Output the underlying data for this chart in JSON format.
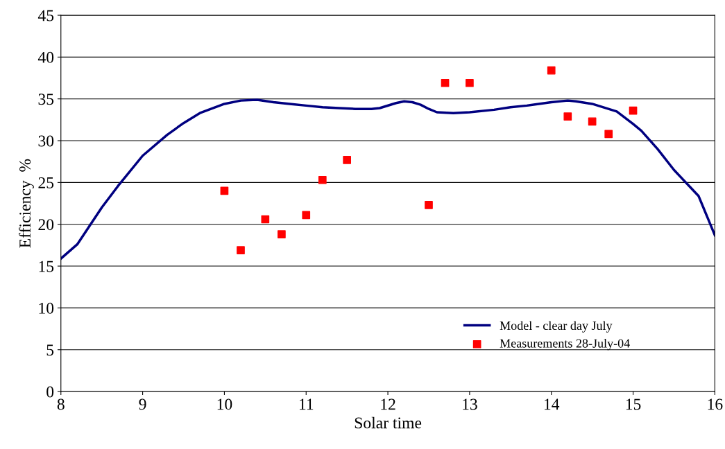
{
  "chart_data": {
    "type": "line",
    "xlabel": "Solar time",
    "ylabel": "Efficiency  %",
    "xlim": [
      8,
      16
    ],
    "xticks": [
      8,
      9,
      10,
      11,
      12,
      13,
      14,
      15,
      16
    ],
    "ylim": [
      0,
      45
    ],
    "yticks": [
      0,
      5,
      10,
      15,
      20,
      25,
      30,
      35,
      40,
      45
    ],
    "grid": "y",
    "legend": "bottom right",
    "series": [
      {
        "name": "Model - clear day July",
        "color": "#000080",
        "marker": "none",
        "line_style": "solid",
        "x": [
          8,
          8.2,
          8.5,
          8.7,
          9.0,
          9.3,
          9.5,
          9.7,
          10.0,
          10.2,
          10.4,
          10.6,
          10.8,
          11.0,
          11.2,
          11.4,
          11.6,
          11.8,
          11.9,
          12.1,
          12.2,
          12.3,
          12.4,
          12.5,
          12.6,
          12.8,
          13.0,
          13.3,
          13.5,
          13.7,
          14.0,
          14.2,
          14.3,
          14.5,
          14.8,
          15.0,
          15.1,
          15.3,
          15.5,
          15.8,
          16.0
        ],
        "values": [
          15.9,
          17.6,
          22.0,
          24.6,
          28.2,
          30.7,
          32.1,
          33.3,
          34.4,
          34.8,
          34.9,
          34.6,
          34.4,
          34.2,
          34.0,
          33.9,
          33.8,
          33.8,
          33.9,
          34.5,
          34.7,
          34.6,
          34.3,
          33.8,
          33.4,
          33.3,
          33.4,
          33.7,
          34.0,
          34.2,
          34.6,
          34.8,
          34.7,
          34.4,
          33.5,
          32.0,
          31.2,
          29.0,
          26.5,
          23.4,
          18.7
        ]
      },
      {
        "name": "Measurements 28-July-04",
        "type": "scatter",
        "color": "#ff0000",
        "marker": "square",
        "x": [
          10.0,
          10.2,
          10.5,
          10.7,
          11.0,
          11.2,
          11.5,
          12.5,
          12.7,
          13.0,
          14.0,
          14.2,
          14.5,
          14.7,
          15.0
        ],
        "values": [
          24.0,
          16.9,
          20.6,
          18.8,
          21.1,
          25.3,
          27.7,
          22.3,
          36.9,
          36.9,
          38.4,
          32.9,
          32.3,
          30.8,
          33.6
        ]
      }
    ]
  }
}
